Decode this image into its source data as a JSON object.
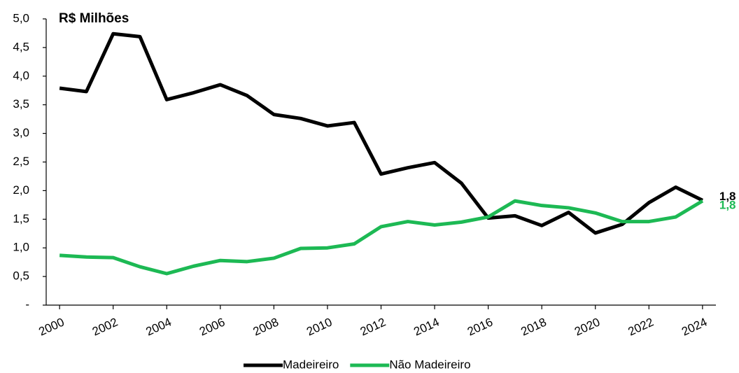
{
  "chart_data": {
    "type": "line",
    "title": "R$ Milhões",
    "x": [
      2000,
      2001,
      2002,
      2003,
      2004,
      2005,
      2006,
      2007,
      2008,
      2009,
      2010,
      2011,
      2012,
      2013,
      2014,
      2015,
      2016,
      2017,
      2018,
      2019,
      2020,
      2021,
      2022,
      2023,
      2024
    ],
    "series": [
      {
        "name": "Madeireiro",
        "color": "#000000",
        "values": [
          3.79,
          3.73,
          4.74,
          4.69,
          3.59,
          3.71,
          3.85,
          3.66,
          3.33,
          3.26,
          3.13,
          3.19,
          2.29,
          2.4,
          2.49,
          2.13,
          1.52,
          1.56,
          1.39,
          1.62,
          1.26,
          1.41,
          1.79,
          2.06,
          1.83
        ],
        "value_labels": [
          null,
          null,
          null,
          null,
          null,
          null,
          null,
          null,
          null,
          null,
          null,
          null,
          null,
          null,
          null,
          null,
          null,
          null,
          null,
          null,
          null,
          null,
          null,
          null,
          "1,8"
        ]
      },
      {
        "name": "Não Madeireiro",
        "color": "#1db954",
        "values": [
          0.87,
          0.84,
          0.83,
          0.67,
          0.55,
          0.68,
          0.78,
          0.76,
          0.82,
          0.99,
          1.0,
          1.07,
          1.37,
          1.46,
          1.4,
          1.45,
          1.54,
          1.82,
          1.74,
          1.7,
          1.61,
          1.46,
          1.46,
          1.54,
          1.82
        ],
        "value_labels": [
          null,
          null,
          null,
          null,
          null,
          null,
          null,
          null,
          null,
          null,
          null,
          null,
          null,
          null,
          null,
          null,
          null,
          null,
          null,
          null,
          null,
          null,
          null,
          null,
          "1,8"
        ]
      }
    ],
    "xlim": [
      1999.5,
      2024.5
    ],
    "xticks": [
      2000,
      2002,
      2004,
      2006,
      2008,
      2010,
      2012,
      2014,
      2016,
      2018,
      2020,
      2022,
      2024
    ],
    "ylim": [
      0,
      5
    ],
    "yticks": [
      {
        "value": 0,
        "label": "-"
      },
      {
        "value": 0.5,
        "label": "0,5"
      },
      {
        "value": 1,
        "label": "1,0"
      },
      {
        "value": 1.5,
        "label": "1,5"
      },
      {
        "value": 2,
        "label": "2,0"
      },
      {
        "value": 2.5,
        "label": "2,5"
      },
      {
        "value": 3,
        "label": "3,0"
      },
      {
        "value": 3.5,
        "label": "3,5"
      },
      {
        "value": 4,
        "label": "4,0"
      },
      {
        "value": 4.5,
        "label": "4,5"
      },
      {
        "value": 5,
        "label": "5,0"
      }
    ],
    "grid": false,
    "legend": "bottom"
  }
}
